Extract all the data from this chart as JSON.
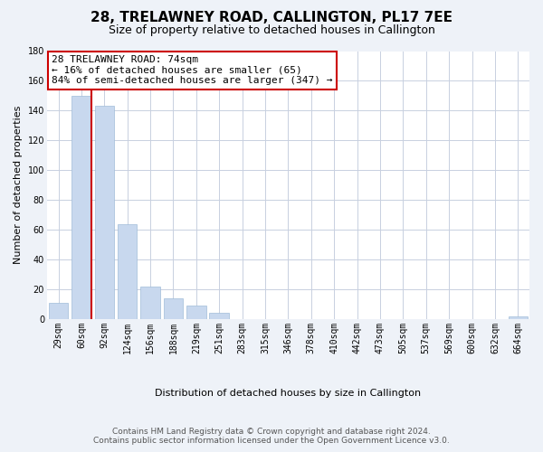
{
  "title": "28, TRELAWNEY ROAD, CALLINGTON, PL17 7EE",
  "subtitle": "Size of property relative to detached houses in Callington",
  "xlabel": "Distribution of detached houses by size in Callington",
  "ylabel": "Number of detached properties",
  "categories": [
    "29sqm",
    "60sqm",
    "92sqm",
    "124sqm",
    "156sqm",
    "188sqm",
    "219sqm",
    "251sqm",
    "283sqm",
    "315sqm",
    "346sqm",
    "378sqm",
    "410sqm",
    "442sqm",
    "473sqm",
    "505sqm",
    "537sqm",
    "569sqm",
    "600sqm",
    "632sqm",
    "664sqm"
  ],
  "values": [
    11,
    150,
    143,
    64,
    22,
    14,
    9,
    4,
    0,
    0,
    0,
    0,
    0,
    0,
    0,
    0,
    0,
    0,
    0,
    0,
    2
  ],
  "bar_color": "#c8d8ee",
  "bar_edge_color": "#a0bcd8",
  "vline_color": "#cc0000",
  "vline_x_index": 1,
  "ylim": [
    0,
    180
  ],
  "yticks": [
    0,
    20,
    40,
    60,
    80,
    100,
    120,
    140,
    160,
    180
  ],
  "ann_line1": "28 TRELAWNEY ROAD: 74sqm",
  "ann_line2": "← 16% of detached houses are smaller (65)",
  "ann_line3": "84% of semi-detached houses are larger (347) →",
  "annotation_box_color": "#ffffff",
  "annotation_box_edge": "#cc0000",
  "footer_line1": "Contains HM Land Registry data © Crown copyright and database right 2024.",
  "footer_line2": "Contains public sector information licensed under the Open Government Licence v3.0.",
  "bg_color": "#eef2f8",
  "plot_bg_color": "#ffffff",
  "grid_color": "#c8d0e0",
  "title_fontsize": 11,
  "subtitle_fontsize": 9,
  "ylabel_fontsize": 8,
  "xlabel_fontsize": 8,
  "tick_fontsize": 7,
  "ann_fontsize": 8,
  "footer_fontsize": 6.5
}
